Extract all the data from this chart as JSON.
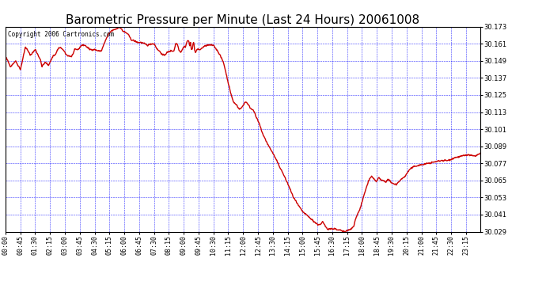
{
  "title": "Barometric Pressure per Minute (Last 24 Hours) 20061008",
  "copyright_text": "Copyright 2006 Cartronics.com",
  "background_color": "#ffffff",
  "plot_bg_color": "#ffffff",
  "grid_color": "#0000ff",
  "line_color": "#cc0000",
  "line_width": 1.0,
  "ylim": [
    30.029,
    30.173
  ],
  "yticks": [
    30.029,
    30.041,
    30.053,
    30.065,
    30.077,
    30.089,
    30.101,
    30.113,
    30.125,
    30.137,
    30.149,
    30.161,
    30.173
  ],
  "xtick_labels": [
    "00:00",
    "00:45",
    "01:30",
    "02:15",
    "03:00",
    "03:45",
    "04:30",
    "05:15",
    "06:00",
    "06:45",
    "07:30",
    "08:15",
    "09:00",
    "09:45",
    "10:30",
    "11:15",
    "12:00",
    "12:45",
    "13:30",
    "14:15",
    "15:00",
    "15:45",
    "16:30",
    "17:15",
    "18:00",
    "18:45",
    "19:30",
    "20:15",
    "21:00",
    "21:45",
    "22:30",
    "23:15"
  ],
  "title_fontsize": 11,
  "tick_fontsize": 6,
  "copyright_fontsize": 5.5,
  "keypoints": [
    [
      0,
      30.152
    ],
    [
      15,
      30.145
    ],
    [
      30,
      30.149
    ],
    [
      45,
      30.143
    ],
    [
      60,
      30.159
    ],
    [
      75,
      30.153
    ],
    [
      90,
      30.157
    ],
    [
      105,
      30.15
    ],
    [
      110,
      30.145
    ],
    [
      120,
      30.148
    ],
    [
      130,
      30.146
    ],
    [
      145,
      30.153
    ],
    [
      150,
      30.153
    ],
    [
      160,
      30.158
    ],
    [
      170,
      30.158
    ],
    [
      185,
      30.153
    ],
    [
      200,
      30.152
    ],
    [
      210,
      30.157
    ],
    [
      220,
      30.157
    ],
    [
      230,
      30.16
    ],
    [
      240,
      30.16
    ],
    [
      255,
      30.157
    ],
    [
      270,
      30.157
    ],
    [
      280,
      30.156
    ],
    [
      290,
      30.156
    ],
    [
      300,
      30.162
    ],
    [
      310,
      30.167
    ],
    [
      320,
      30.17
    ],
    [
      330,
      30.171
    ],
    [
      340,
      30.172
    ],
    [
      345,
      30.173
    ],
    [
      355,
      30.17
    ],
    [
      370,
      30.168
    ],
    [
      380,
      30.164
    ],
    [
      390,
      30.163
    ],
    [
      400,
      30.162
    ],
    [
      410,
      30.162
    ],
    [
      420,
      30.161
    ],
    [
      430,
      30.16
    ],
    [
      440,
      30.161
    ],
    [
      450,
      30.161
    ],
    [
      460,
      30.157
    ],
    [
      470,
      30.155
    ],
    [
      475,
      30.153
    ],
    [
      480,
      30.153
    ],
    [
      490,
      30.155
    ],
    [
      500,
      30.156
    ],
    [
      510,
      30.156
    ],
    [
      515,
      30.161
    ],
    [
      520,
      30.161
    ],
    [
      525,
      30.157
    ],
    [
      530,
      30.155
    ],
    [
      540,
      30.159
    ],
    [
      545,
      30.159
    ],
    [
      550,
      30.163
    ],
    [
      555,
      30.163
    ],
    [
      558,
      30.159
    ],
    [
      560,
      30.163
    ],
    [
      562,
      30.157
    ],
    [
      565,
      30.157
    ],
    [
      568,
      30.162
    ],
    [
      570,
      30.162
    ],
    [
      572,
      30.157
    ],
    [
      575,
      30.155
    ],
    [
      580,
      30.157
    ],
    [
      590,
      30.157
    ],
    [
      600,
      30.159
    ],
    [
      610,
      30.16
    ],
    [
      625,
      30.16
    ],
    [
      630,
      30.16
    ],
    [
      645,
      30.155
    ],
    [
      660,
      30.148
    ],
    [
      670,
      30.138
    ],
    [
      680,
      30.128
    ],
    [
      690,
      30.12
    ],
    [
      700,
      30.118
    ],
    [
      708,
      30.115
    ],
    [
      715,
      30.116
    ],
    [
      720,
      30.118
    ],
    [
      725,
      30.12
    ],
    [
      730,
      30.12
    ],
    [
      738,
      30.117
    ],
    [
      745,
      30.115
    ],
    [
      750,
      30.115
    ],
    [
      758,
      30.11
    ],
    [
      768,
      30.105
    ],
    [
      780,
      30.097
    ],
    [
      795,
      30.09
    ],
    [
      810,
      30.084
    ],
    [
      825,
      30.077
    ],
    [
      840,
      30.07
    ],
    [
      858,
      30.061
    ],
    [
      870,
      30.054
    ],
    [
      885,
      30.048
    ],
    [
      900,
      30.043
    ],
    [
      915,
      30.04
    ],
    [
      930,
      30.037
    ],
    [
      945,
      30.034
    ],
    [
      955,
      30.034
    ],
    [
      960,
      30.036
    ],
    [
      968,
      30.033
    ],
    [
      975,
      30.031
    ],
    [
      983,
      30.031
    ],
    [
      990,
      30.031
    ],
    [
      998,
      30.031
    ],
    [
      1005,
      30.03
    ],
    [
      1010,
      30.03
    ],
    [
      1018,
      30.03
    ],
    [
      1020,
      30.029
    ],
    [
      1028,
      30.029
    ],
    [
      1035,
      30.03
    ],
    [
      1040,
      30.03
    ],
    [
      1048,
      30.031
    ],
    [
      1055,
      30.033
    ],
    [
      1060,
      30.038
    ],
    [
      1065,
      30.041
    ],
    [
      1072,
      30.044
    ],
    [
      1080,
      30.05
    ],
    [
      1090,
      30.058
    ],
    [
      1100,
      30.065
    ],
    [
      1108,
      30.068
    ],
    [
      1115,
      30.066
    ],
    [
      1123,
      30.064
    ],
    [
      1130,
      30.067
    ],
    [
      1138,
      30.065
    ],
    [
      1145,
      30.065
    ],
    [
      1153,
      30.064
    ],
    [
      1160,
      30.066
    ],
    [
      1168,
      30.063
    ],
    [
      1175,
      30.063
    ],
    [
      1183,
      30.062
    ],
    [
      1190,
      30.064
    ],
    [
      1200,
      30.066
    ],
    [
      1210,
      30.068
    ],
    [
      1225,
      30.073
    ],
    [
      1240,
      30.075
    ],
    [
      1260,
      30.076
    ],
    [
      1280,
      30.077
    ],
    [
      1300,
      30.078
    ],
    [
      1320,
      30.079
    ],
    [
      1340,
      30.079
    ],
    [
      1360,
      30.081
    ],
    [
      1380,
      30.082
    ],
    [
      1400,
      30.083
    ],
    [
      1420,
      30.082
    ],
    [
      1439,
      30.084
    ]
  ]
}
